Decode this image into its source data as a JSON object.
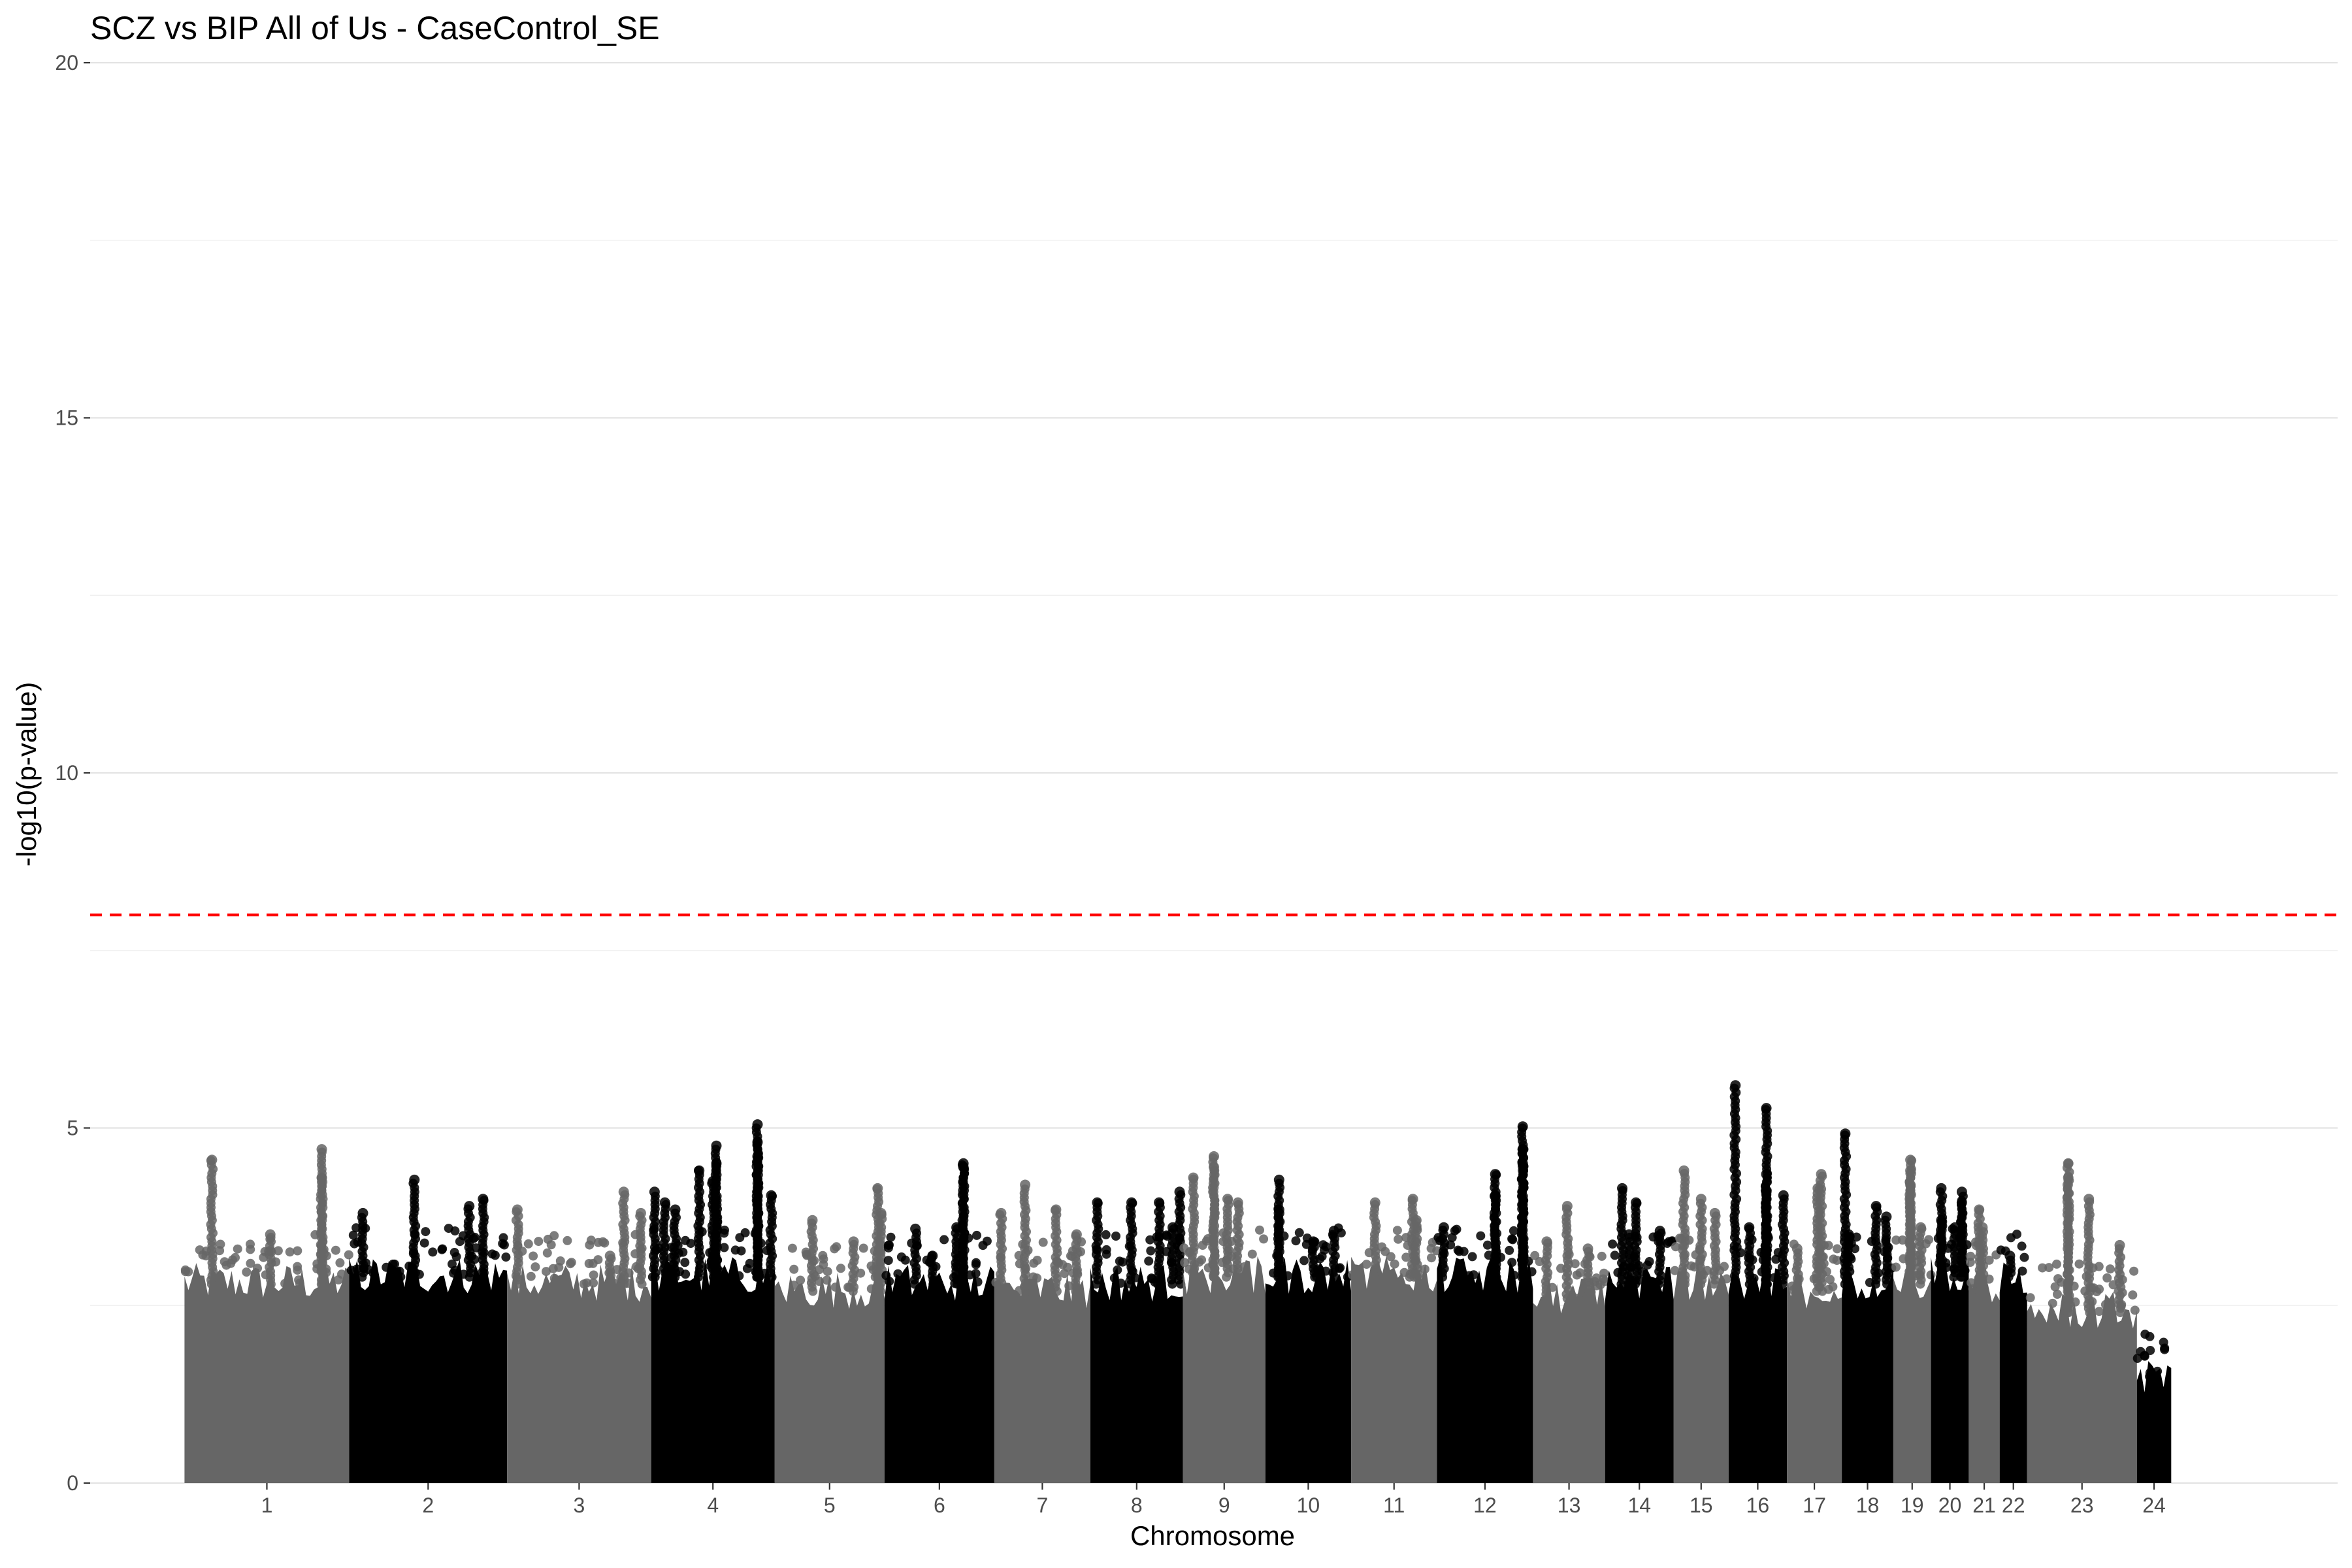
{
  "chart_data": {
    "type": "scatter",
    "title": "SCZ vs BIP All of Us - CaseControl_SE",
    "xlabel": "Chromosome",
    "ylabel": "-log10(p-value)",
    "ylim": [
      0,
      20
    ],
    "yticks": [
      "0",
      "5",
      "10",
      "15",
      "20"
    ],
    "threshold": 8,
    "colors": {
      "dark": "#000000",
      "light": "#666666",
      "threshold": "#ff0000"
    },
    "chromosomes": [
      {
        "label": "1",
        "start": 0.0,
        "end": 4.8,
        "color": "light",
        "base": 2.8,
        "peaks": [
          [
            0.8,
            4.55
          ],
          [
            4.0,
            4.7
          ],
          [
            4.0,
            4.3
          ],
          [
            2.5,
            3.5
          ]
        ]
      },
      {
        "label": "2",
        "start": 4.8,
        "end": 9.4,
        "color": "dark",
        "base": 2.9,
        "peaks": [
          [
            0.4,
            3.8
          ],
          [
            1.9,
            4.27
          ],
          [
            3.9,
            4.0
          ],
          [
            3.5,
            3.9
          ]
        ]
      },
      {
        "label": "3",
        "start": 9.4,
        "end": 13.6,
        "color": "light",
        "base": 2.8,
        "peaks": [
          [
            0.3,
            3.85
          ],
          [
            3.0,
            3.2
          ],
          [
            3.4,
            4.1
          ],
          [
            3.9,
            3.8
          ]
        ]
      },
      {
        "label": "4",
        "start": 13.6,
        "end": 17.2,
        "color": "dark",
        "base": 2.9,
        "peaks": [
          [
            0.1,
            4.1
          ],
          [
            0.4,
            3.95
          ],
          [
            0.7,
            3.85
          ],
          [
            1.4,
            4.4
          ],
          [
            1.8,
            4.25
          ],
          [
            1.9,
            4.75
          ],
          [
            1.9,
            4.5
          ],
          [
            3.1,
            5.05
          ],
          [
            3.1,
            4.8
          ],
          [
            3.1,
            4.6
          ],
          [
            3.5,
            4.05
          ]
        ]
      },
      {
        "label": "5",
        "start": 17.2,
        "end": 20.4,
        "color": "light",
        "base": 2.7,
        "peaks": [
          [
            1.1,
            3.7
          ],
          [
            3.0,
            4.15
          ],
          [
            3.1,
            3.8
          ],
          [
            2.3,
            3.4
          ]
        ]
      },
      {
        "label": "6",
        "start": 20.4,
        "end": 23.6,
        "color": "dark",
        "base": 2.8,
        "peaks": [
          [
            0.9,
            3.58
          ],
          [
            2.1,
            3.6
          ],
          [
            2.3,
            4.5
          ],
          [
            2.3,
            4.45
          ],
          [
            1.4,
            3.2
          ]
        ]
      },
      {
        "label": "7",
        "start": 23.6,
        "end": 26.4,
        "color": "light",
        "base": 2.7,
        "peaks": [
          [
            0.2,
            3.8
          ],
          [
            0.9,
            4.2
          ],
          [
            1.8,
            3.85
          ],
          [
            2.4,
            3.5
          ]
        ]
      },
      {
        "label": "8",
        "start": 26.4,
        "end": 29.1,
        "color": "dark",
        "base": 2.8,
        "peaks": [
          [
            0.2,
            3.95
          ],
          [
            1.2,
            3.95
          ],
          [
            2.0,
            3.95
          ],
          [
            2.6,
            4.1
          ],
          [
            2.4,
            3.6
          ]
        ]
      },
      {
        "label": "9",
        "start": 29.1,
        "end": 31.5,
        "color": "light",
        "base": 2.9,
        "peaks": [
          [
            0.3,
            4.3
          ],
          [
            0.9,
            4.6
          ],
          [
            0.9,
            4.45
          ],
          [
            1.3,
            4.0
          ],
          [
            1.6,
            3.95
          ]
        ]
      },
      {
        "label": "10",
        "start": 31.5,
        "end": 34.0,
        "color": "dark",
        "base": 2.9,
        "peaks": [
          [
            0.4,
            4.27
          ],
          [
            0.4,
            3.85
          ],
          [
            1.4,
            3.4
          ],
          [
            2.0,
            3.55
          ]
        ]
      },
      {
        "label": "11",
        "start": 34.0,
        "end": 36.5,
        "color": "light",
        "base": 2.9,
        "peaks": [
          [
            0.7,
            3.95
          ],
          [
            1.8,
            4.0
          ],
          [
            1.9,
            3.7
          ]
        ]
      },
      {
        "label": "12",
        "start": 36.5,
        "end": 39.3,
        "color": "dark",
        "base": 2.9,
        "peaks": [
          [
            0.2,
            3.6
          ],
          [
            1.7,
            4.35
          ],
          [
            1.7,
            4.05
          ],
          [
            2.5,
            5.02
          ],
          [
            2.5,
            4.7
          ],
          [
            2.5,
            4.5
          ]
        ]
      },
      {
        "label": "13",
        "start": 39.3,
        "end": 41.4,
        "color": "light",
        "base": 2.6,
        "peaks": [
          [
            1.0,
            3.9
          ],
          [
            0.4,
            3.4
          ],
          [
            1.6,
            3.3
          ]
        ]
      },
      {
        "label": "14",
        "start": 41.4,
        "end": 43.4,
        "color": "dark",
        "base": 2.8,
        "peaks": [
          [
            0.5,
            4.15
          ],
          [
            0.9,
            3.95
          ],
          [
            0.7,
            3.5
          ],
          [
            1.6,
            3.55
          ]
        ]
      },
      {
        "label": "15",
        "start": 43.4,
        "end": 45.0,
        "color": "light",
        "base": 2.8,
        "peaks": [
          [
            0.3,
            4.4
          ],
          [
            0.8,
            4.0
          ],
          [
            1.2,
            3.8
          ]
        ]
      },
      {
        "label": "16",
        "start": 45.0,
        "end": 46.7,
        "color": "dark",
        "base": 2.8,
        "peaks": [
          [
            0.2,
            5.6
          ],
          [
            1.1,
            5.28
          ],
          [
            1.1,
            4.35
          ],
          [
            1.1,
            4.1
          ],
          [
            1.6,
            4.05
          ],
          [
            0.6,
            3.6
          ]
        ]
      },
      {
        "label": "17",
        "start": 46.7,
        "end": 48.3,
        "color": "light",
        "base": 2.7,
        "peaks": [
          [
            1.0,
            4.35
          ],
          [
            0.9,
            4.15
          ],
          [
            0.3,
            3.3
          ]
        ]
      },
      {
        "label": "18",
        "start": 48.3,
        "end": 49.8,
        "color": "dark",
        "base": 2.8,
        "peaks": [
          [
            0.1,
            4.92
          ],
          [
            0.2,
            3.5
          ],
          [
            1.0,
            3.9
          ],
          [
            1.3,
            3.75
          ]
        ]
      },
      {
        "label": "19",
        "start": 49.8,
        "end": 50.9,
        "color": "light",
        "base": 2.8,
        "peaks": [
          [
            0.5,
            4.55
          ],
          [
            0.5,
            4.4
          ],
          [
            0.5,
            4.2
          ],
          [
            0.8,
            3.6
          ]
        ]
      },
      {
        "label": "20",
        "start": 50.9,
        "end": 52.0,
        "color": "dark",
        "base": 2.9,
        "peaks": [
          [
            0.3,
            4.15
          ],
          [
            0.3,
            3.7
          ],
          [
            0.9,
            4.1
          ],
          [
            0.9,
            3.95
          ],
          [
            0.7,
            3.6
          ]
        ]
      },
      {
        "label": "21",
        "start": 52.0,
        "end": 52.9,
        "color": "light",
        "base": 2.7,
        "peaks": [
          [
            0.3,
            3.85
          ],
          [
            0.4,
            3.6
          ]
        ]
      },
      {
        "label": "22",
        "start": 52.9,
        "end": 53.7,
        "color": "dark",
        "base": 2.9,
        "peaks": [
          [
            0.3,
            3.2
          ]
        ]
      },
      {
        "label": "23",
        "start": 53.7,
        "end": 56.9,
        "color": "light",
        "base": 2.4,
        "peaks": [
          [
            1.2,
            4.5
          ],
          [
            1.2,
            4.3
          ],
          [
            1.8,
            4.0
          ],
          [
            2.7,
            3.35
          ]
        ]
      },
      {
        "label": "24",
        "start": 56.9,
        "end": 57.9,
        "color": "dark",
        "base": 1.5,
        "peaks": [
          [
            0.4,
            1.55
          ]
        ]
      }
    ],
    "xlim": [
      -2.75,
      62.75
    ]
  }
}
